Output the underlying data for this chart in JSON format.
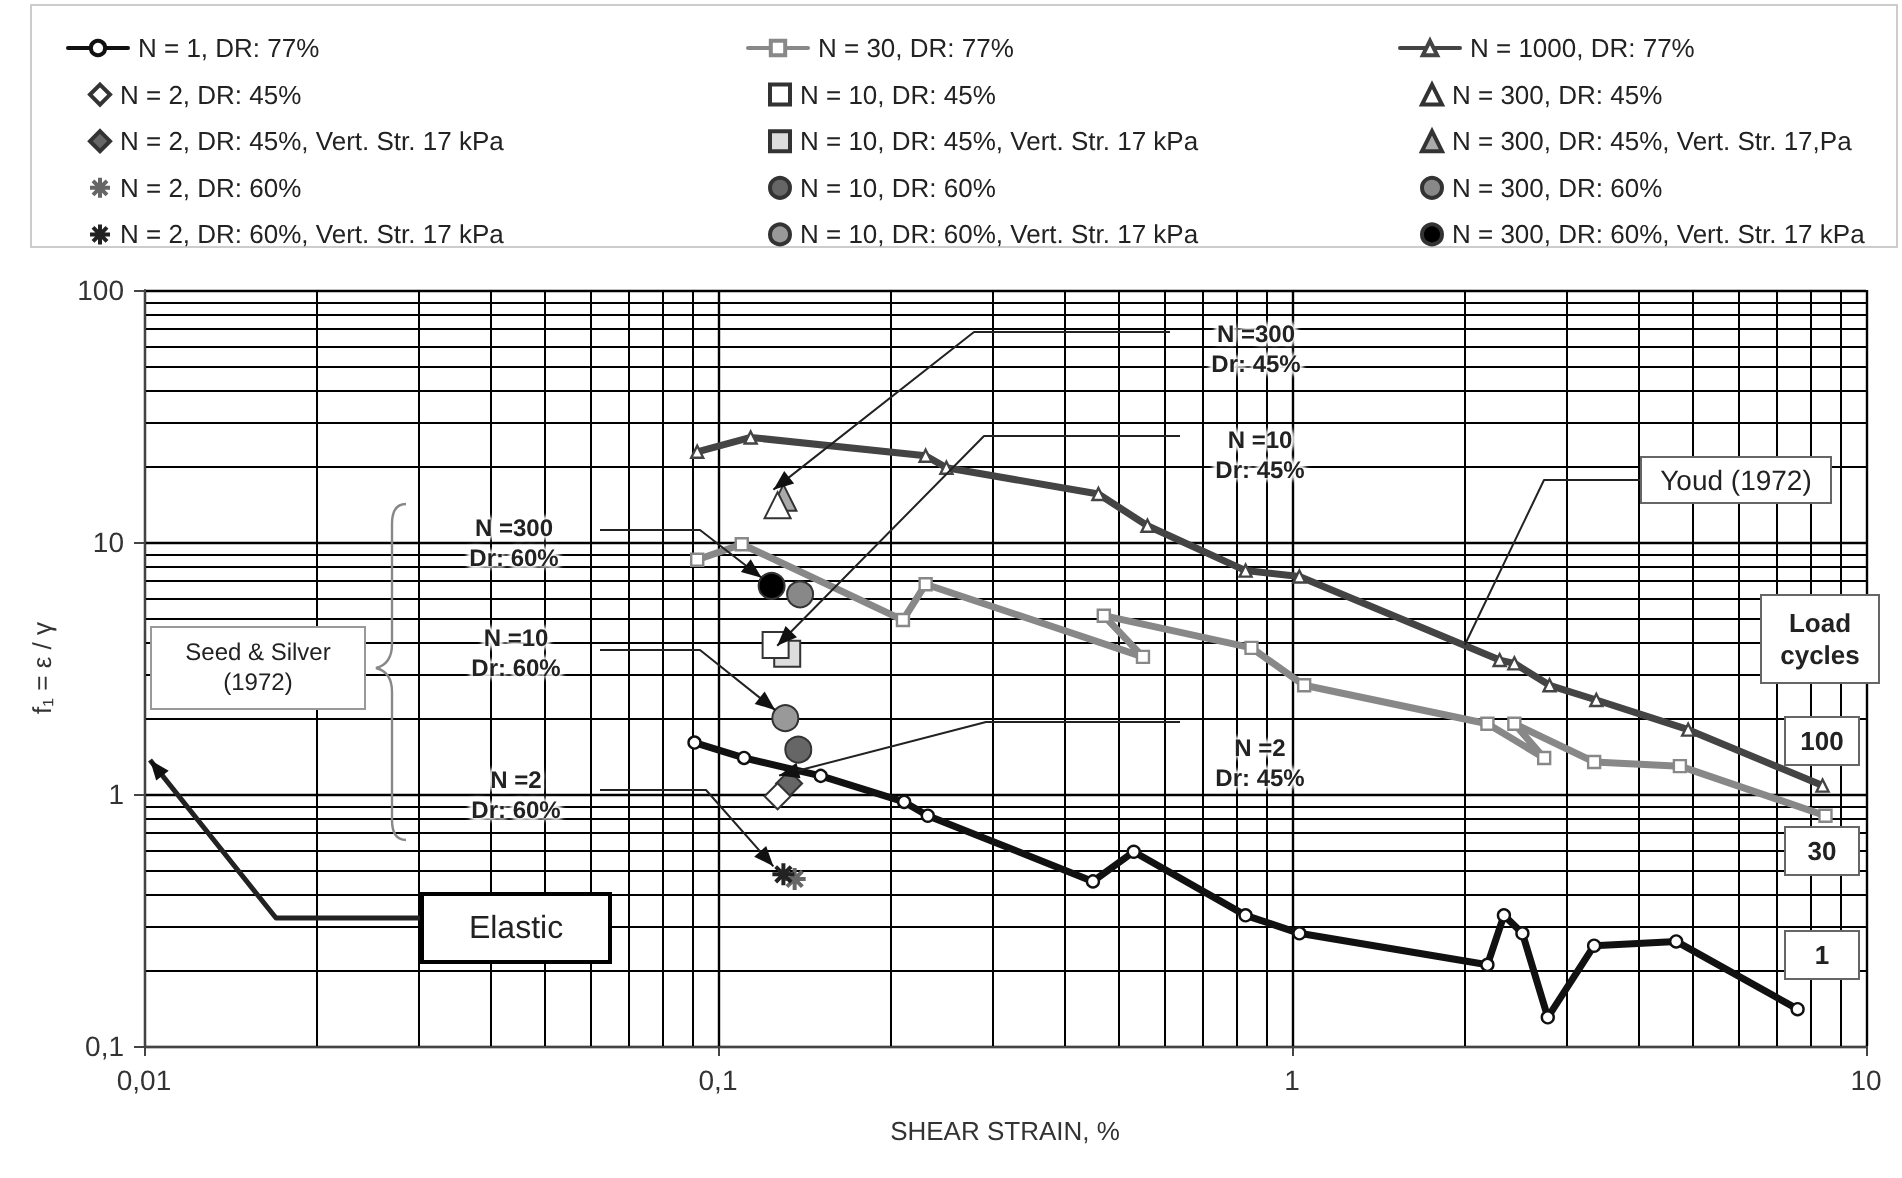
{
  "chart_data": {
    "type": "line",
    "xlabel": "SHEAR STRAIN, %",
    "ylabel": "f₁ = ε / γ",
    "log": "xy",
    "grid": true,
    "legend": "top",
    "line_style": "solid",
    "xlim": [
      0.01,
      10
    ],
    "xticks": [
      {
        "value": 0.01,
        "label": "0,01"
      },
      {
        "value": 0.1,
        "label": "0,1"
      },
      1,
      10
    ],
    "ylim": [
      0.1,
      100
    ],
    "yticks": [
      {
        "value": 0.1,
        "label": "0,1"
      },
      1,
      10,
      100
    ],
    "series": [
      {
        "name": "N = 1, DR: 77%",
        "marker": "circle",
        "color": "#111111",
        "x": [
          0.091,
          0.111,
          0.151,
          0.211,
          0.232,
          0.45,
          0.53,
          0.83,
          1.03,
          2.19,
          2.34,
          2.52,
          2.79,
          3.36,
          4.67,
          7.6
        ],
        "values": [
          1.6,
          1.39,
          1.18,
          0.93,
          0.82,
          0.45,
          0.59,
          0.33,
          0.28,
          0.21,
          0.33,
          0.28,
          0.13,
          0.25,
          0.26,
          0.14
        ]
      },
      {
        "name": "N = 2, DR: 45%",
        "type": "scatter",
        "marker": "diamond",
        "color": "#ffffff",
        "x": [
          0.127
        ],
        "values": [
          0.98
        ]
      },
      {
        "name": "N = 2, DR: 45%, Vert. Str. 17 kPa",
        "type": "scatter",
        "marker": "diamond",
        "color": "#666666",
        "x": [
          0.133
        ],
        "values": [
          1.1
        ]
      },
      {
        "name": "N = 2, DR: 60%",
        "type": "scatter",
        "marker": "cross",
        "color": "#666666",
        "x": [
          0.136
        ],
        "values": [
          0.46
        ]
      },
      {
        "name": "N = 2, DR: 60%, Vert. Str. 17 kPa",
        "type": "scatter",
        "marker": "cross",
        "color": "#222222",
        "x": [
          0.13
        ],
        "values": [
          0.48
        ]
      },
      {
        "name": "N = 30, DR: 77%",
        "marker": "square",
        "color": "#888888",
        "x": [
          0.092,
          0.11,
          0.21,
          0.23,
          0.55,
          0.47,
          0.85,
          1.05,
          2.19,
          2.75,
          2.44,
          3.36,
          4.74,
          8.5
        ],
        "values": [
          8.5,
          9.8,
          4.9,
          6.8,
          3.5,
          5.1,
          3.8,
          2.7,
          1.9,
          1.39,
          1.9,
          1.34,
          1.29,
          0.82
        ]
      },
      {
        "name": "N = 10, DR: 45%",
        "type": "scatter",
        "marker": "square",
        "color": "#ffffff",
        "x": [
          0.126
        ],
        "values": [
          3.9
        ]
      },
      {
        "name": "N = 10, DR: 45%, Vert. Str. 17 kPa",
        "type": "scatter",
        "marker": "square",
        "color": "#dddddd",
        "x": [
          0.132
        ],
        "values": [
          3.6
        ]
      },
      {
        "name": "N = 10, DR: 60%",
        "type": "scatter",
        "marker": "circle",
        "color": "#666666",
        "x": [
          0.138
        ],
        "values": [
          1.5
        ]
      },
      {
        "name": "N = 10, DR: 60%, Vert. Str. 17 kPa",
        "type": "scatter",
        "marker": "circle",
        "color": "#999999",
        "x": [
          0.131
        ],
        "values": [
          2.0
        ]
      },
      {
        "name": "N = 1000, DR: 77%",
        "marker": "triangle",
        "color": "#444444",
        "x": [
          0.092,
          0.114,
          0.23,
          0.25,
          0.46,
          0.56,
          0.83,
          1.03,
          2.3,
          2.44,
          2.81,
          3.39,
          4.9,
          8.4
        ],
        "values": [
          22.8,
          26,
          22,
          19.7,
          15.5,
          11.6,
          7.7,
          7.3,
          3.4,
          3.3,
          2.7,
          2.36,
          1.8,
          1.08
        ]
      },
      {
        "name": "N = 300, DR: 45%",
        "type": "scatter",
        "marker": "triangle",
        "color": "#ffffff",
        "x": [
          0.127
        ],
        "values": [
          14
        ]
      },
      {
        "name": "N = 300, DR: 45%, Vert. Str. 17,Pa",
        "type": "scatter",
        "marker": "triangle",
        "color": "#aaaaaa",
        "x": [
          0.13
        ],
        "values": [
          15
        ]
      },
      {
        "name": "N = 300, DR: 60%",
        "type": "scatter",
        "marker": "circle",
        "color": "#888888",
        "x": [
          0.139
        ],
        "values": [
          6.2
        ]
      },
      {
        "name": "N = 300, DR: 60%, Vert. Str. 17 kPa",
        "type": "scatter",
        "marker": "circle",
        "color": "#000000",
        "x": [
          0.124
        ],
        "values": [
          6.7
        ]
      }
    ],
    "annotations": [
      "N =300\nDr: 45%",
      "N =10\nDr: 45%",
      "N =2\nDr: 45%",
      "N =300\nDr: 60%",
      "N =10\nDr: 60%",
      "N =2\nDr: 60%",
      "Seed & Silver\n(1972)",
      {
        "text": "Youd (1972)",
        "x": 2,
        "y": 3.9
      },
      "Elastic",
      "Load\ncycles",
      "100",
      "30",
      "1"
    ]
  }
}
